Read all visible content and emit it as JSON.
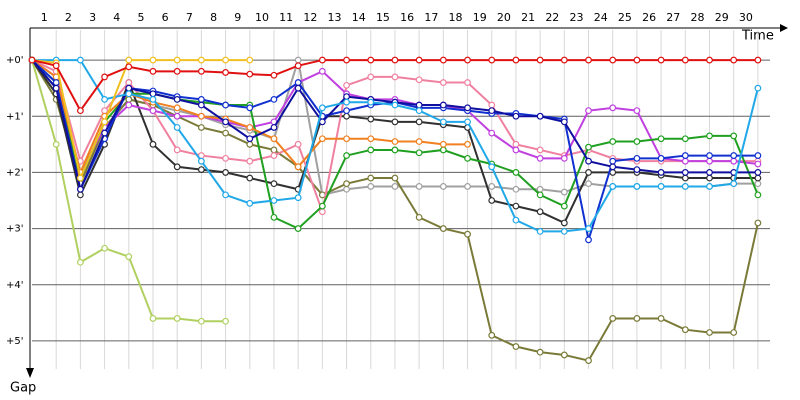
{
  "chart_data": {
    "type": "line",
    "x_label": "Time",
    "y_label": "Gap",
    "x": [
      0,
      1,
      2,
      3,
      4,
      5,
      6,
      7,
      8,
      9,
      10,
      11,
      12,
      13,
      14,
      15,
      16,
      17,
      18,
      19,
      20,
      21,
      22,
      23,
      24,
      25,
      26,
      27,
      28,
      29,
      30
    ],
    "xlim": [
      0,
      30.5
    ],
    "xticks": [
      1,
      2,
      3,
      4,
      5,
      6,
      7,
      8,
      9,
      10,
      11,
      12,
      13,
      14,
      15,
      16,
      17,
      18,
      19,
      20,
      21,
      22,
      23,
      24,
      25,
      26,
      27,
      28,
      29,
      30
    ],
    "ylim": [
      -0.5,
      5.5
    ],
    "yticks": [
      {
        "value": 0,
        "label": "+0'"
      },
      {
        "value": 1,
        "label": "+1'"
      },
      {
        "value": 2,
        "label": "+2'"
      },
      {
        "value": 3,
        "label": "+3'"
      },
      {
        "value": 4,
        "label": "+4'"
      },
      {
        "value": 5,
        "label": "+5'"
      }
    ],
    "grid": true,
    "inverted_y": true,
    "series": [
      {
        "color": "#a0a0a0",
        "values": [
          0,
          0.5,
          2.1,
          1.2,
          0.7,
          0.8,
          0.9,
          1.0,
          1.15,
          1.25,
          1.4,
          0,
          2.4,
          2.3,
          2.25,
          2.25,
          2.25,
          2.25,
          2.25,
          2.25,
          2.3,
          2.3,
          2.35,
          2.2,
          2.25,
          2.25,
          2.25,
          2.25,
          2.25,
          2.2,
          2.2
        ]
      },
      {
        "color": "#7a7a38",
        "values": [
          0,
          0.7,
          2.2,
          1.2,
          0.7,
          0.8,
          1.0,
          1.2,
          1.3,
          1.5,
          1.6,
          1.9,
          2.4,
          2.2,
          2.1,
          2.1,
          2.8,
          3.0,
          3.1,
          4.9,
          5.1,
          5.2,
          5.25,
          5.35,
          4.6,
          4.6,
          4.6,
          4.8,
          4.85,
          4.85,
          2.9
        ]
      },
      {
        "color": "#b0d060",
        "values": [
          0,
          1.5,
          3.6,
          3.35,
          3.5,
          4.6,
          4.6,
          4.65,
          4.65,
          null,
          null,
          null,
          null,
          null,
          null,
          null,
          null,
          null,
          null,
          null,
          null,
          null,
          null,
          null,
          null,
          null,
          null,
          null,
          null,
          null,
          null
        ]
      },
      {
        "color": "#303030",
        "values": [
          0,
          0.6,
          2.4,
          1.5,
          0.4,
          1.5,
          1.9,
          1.95,
          2.0,
          2.1,
          2.2,
          2.3,
          1.0,
          1.0,
          1.05,
          1.1,
          1.1,
          1.15,
          1.2,
          2.5,
          2.6,
          2.7,
          2.9,
          2.0,
          2.0,
          2.0,
          2.05,
          2.1,
          2.1,
          2.1,
          2.1
        ]
      },
      {
        "color": "#f080a0",
        "values": [
          0,
          0.2,
          1.8,
          0.9,
          0.4,
          0.9,
          1.6,
          1.7,
          1.75,
          1.8,
          1.7,
          1.5,
          2.7,
          0.45,
          0.3,
          0.3,
          0.35,
          0.4,
          0.4,
          0.8,
          1.5,
          1.6,
          1.7,
          1.6,
          1.75,
          1.8,
          1.8,
          1.8,
          1.8,
          1.8,
          1.8
        ]
      },
      {
        "color": "#c040e0",
        "values": [
          0,
          0.3,
          2.0,
          1.2,
          0.8,
          0.9,
          1.0,
          1.0,
          1.1,
          1.2,
          1.1,
          0.4,
          0.2,
          0.6,
          0.7,
          0.7,
          0.8,
          0.8,
          0.9,
          1.3,
          1.6,
          1.75,
          1.75,
          0.9,
          0.85,
          0.9,
          1.75,
          1.8,
          1.8,
          1.8,
          1.85
        ]
      },
      {
        "color": "#20a020",
        "values": [
          0,
          0.4,
          2.1,
          1.1,
          0.6,
          0.6,
          0.7,
          0.75,
          0.8,
          0.8,
          2.8,
          3.0,
          2.6,
          1.7,
          1.6,
          1.6,
          1.65,
          1.6,
          1.75,
          1.85,
          2.0,
          2.4,
          2.6,
          1.55,
          1.45,
          1.45,
          1.4,
          1.4,
          1.35,
          1.35,
          2.4
        ]
      },
      {
        "color": "#f08020",
        "values": [
          0,
          0.3,
          2.0,
          1.0,
          0.6,
          0.75,
          0.85,
          1.0,
          1.05,
          1.2,
          1.4,
          1.9,
          1.4,
          1.4,
          1.4,
          1.45,
          1.45,
          1.5,
          1.5,
          null,
          null,
          null,
          null,
          null,
          null,
          null,
          null,
          null,
          null,
          null,
          null
        ]
      },
      {
        "color": "#1030d0",
        "values": [
          0,
          0.4,
          2.3,
          1.4,
          0.5,
          0.55,
          0.65,
          0.7,
          0.8,
          0.85,
          0.7,
          0.4,
          1.0,
          0.9,
          0.8,
          0.75,
          0.85,
          0.85,
          0.9,
          0.95,
          0.95,
          1.0,
          1.05,
          3.2,
          1.8,
          1.75,
          1.75,
          1.7,
          1.7,
          1.7,
          1.7
        ]
      },
      {
        "color": "#1010a0",
        "values": [
          0,
          0.5,
          2.3,
          1.3,
          0.5,
          0.6,
          0.7,
          0.8,
          1.1,
          1.4,
          1.2,
          0.5,
          1.1,
          0.65,
          0.7,
          0.75,
          0.8,
          0.8,
          0.85,
          0.9,
          1.0,
          1.0,
          1.1,
          1.8,
          1.9,
          1.95,
          2.0,
          2.0,
          2.0,
          2.0,
          2.0
        ]
      },
      {
        "color": "#20a8e8",
        "values": [
          0,
          0,
          0,
          0.7,
          0.6,
          0.7,
          1.2,
          1.8,
          2.4,
          2.55,
          2.5,
          2.45,
          0.85,
          0.75,
          0.75,
          0.8,
          0.9,
          1.1,
          1.1,
          1.9,
          2.85,
          3.05,
          3.05,
          3.0,
          2.25,
          2.25,
          2.25,
          2.25,
          2.25,
          2.2,
          0.5
        ]
      },
      {
        "color": "#f0c020",
        "values": [
          0,
          0.05,
          2.1,
          1.1,
          0,
          0,
          0,
          0,
          0,
          0,
          null,
          null,
          null,
          null,
          null,
          null,
          null,
          null,
          null,
          null,
          null,
          null,
          null,
          null,
          null,
          null,
          null,
          null,
          null,
          null,
          null
        ]
      },
      {
        "color": "#e01010",
        "values": [
          0,
          0.1,
          0.9,
          0.3,
          0.12,
          0.2,
          0.2,
          0.2,
          0.22,
          0.25,
          0.27,
          0.1,
          0,
          0,
          0,
          0,
          0,
          0,
          0,
          0,
          0,
          0,
          0,
          0,
          0,
          0,
          0,
          0,
          0,
          0,
          0
        ]
      }
    ]
  }
}
